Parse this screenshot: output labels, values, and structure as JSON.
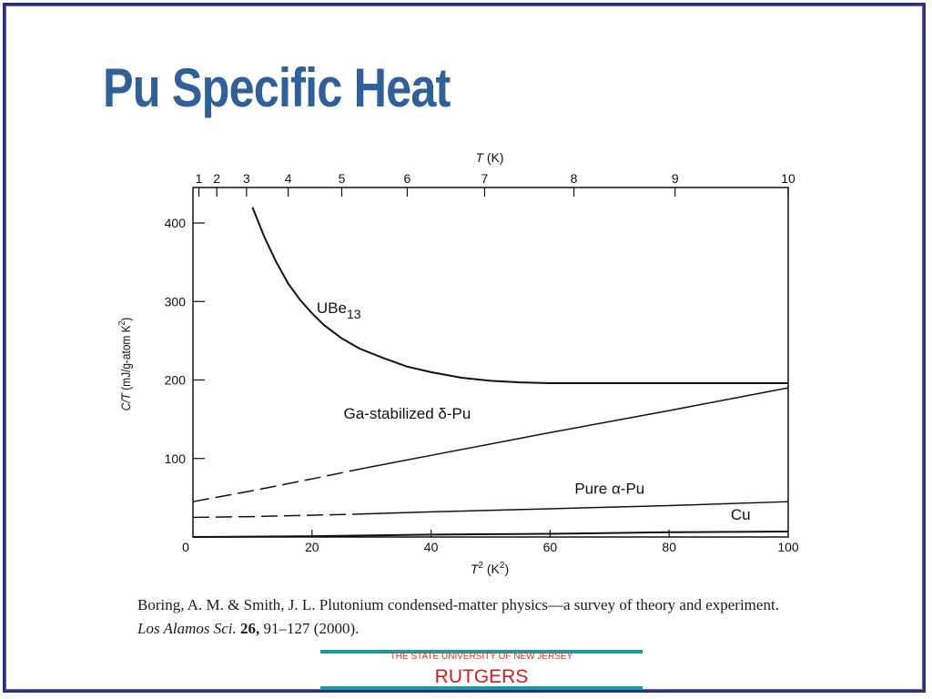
{
  "slide": {
    "title": "Pu Specific Heat"
  },
  "citation": {
    "text_before": "Boring, A. M. & Smith, J. L. Plutonium condensed-matter physics—a survey of theory and experiment. ",
    "journal": "Los Alamos Sci.",
    "volume": "26,",
    "pages_year": " 91–127 (2000)."
  },
  "logo": {
    "subtitle": "THE STATE UNIVERSITY OF NEW JERSEY",
    "name": "RUTGERS",
    "bar_color": "#1e9a9a",
    "text_color": "#d21f1f"
  },
  "chart_data": {
    "type": "line",
    "xlabel": "T² (K²)",
    "ylabel": "C/T (mJ/g-atom K²)",
    "top_axis_label": "T (K)",
    "xlim": [
      0,
      100
    ],
    "ylim": [
      0,
      400
    ],
    "x_ticks": [
      0,
      20,
      40,
      60,
      80,
      100
    ],
    "y_ticks": [
      100,
      200,
      300,
      400
    ],
    "top_ticks": [
      1,
      2,
      3,
      4,
      5,
      6,
      7,
      8,
      9,
      10
    ],
    "grid": false,
    "series": [
      {
        "name": "UBe13",
        "style": "solid",
        "x": [
          10,
          12,
          14,
          16,
          18,
          20,
          22,
          25,
          28,
          32,
          36,
          40,
          45,
          50,
          55,
          60,
          70,
          80,
          100
        ],
        "y": [
          420,
          382,
          350,
          323,
          302,
          285,
          270,
          253,
          240,
          228,
          217,
          210,
          203,
          199,
          197,
          196,
          196,
          196,
          196
        ]
      },
      {
        "name": "Ga-stabilized δ-Pu",
        "style": "dashed-to-solid",
        "solid_from_x": 29,
        "x": [
          0,
          10,
          20,
          29,
          40,
          60,
          80,
          100
        ],
        "y": [
          45,
          59,
          74,
          88,
          104,
          133,
          161,
          190
        ]
      },
      {
        "name": "Pure α-Pu",
        "style": "dashed-to-solid",
        "solid_from_x": 27,
        "x": [
          0,
          10,
          27,
          40,
          60,
          80,
          100
        ],
        "y": [
          25,
          26,
          29,
          32,
          36,
          40,
          45
        ]
      },
      {
        "name": "Cu",
        "style": "solid",
        "x": [
          0,
          20,
          40,
          60,
          80,
          100
        ],
        "y": [
          0,
          1,
          3,
          4,
          6,
          7
        ]
      }
    ],
    "labels": [
      {
        "text": "UBe",
        "sub": "13",
        "x": 24.5,
        "y": 285
      },
      {
        "text": "Ga-stabilized δ-Pu",
        "x": 36,
        "y": 151
      },
      {
        "text": "Pure α-Pu",
        "x": 70,
        "y": 55
      },
      {
        "text": "Cu",
        "x": 92,
        "y": 22
      }
    ]
  }
}
